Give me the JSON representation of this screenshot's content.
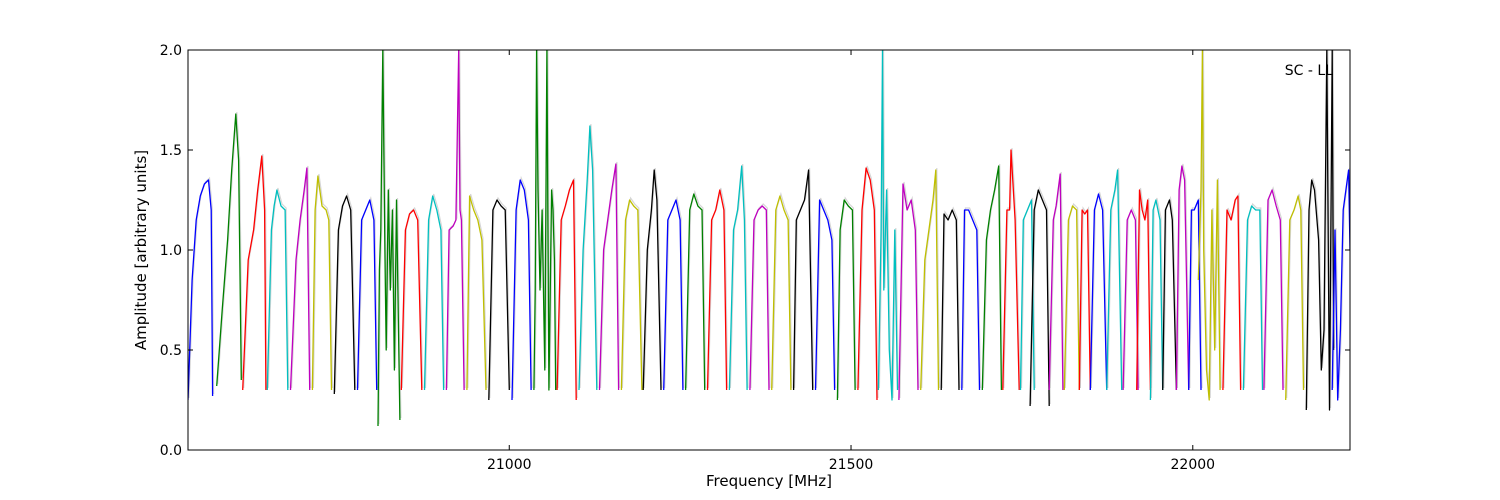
{
  "chart_data": {
    "type": "line",
    "title": "",
    "annotation": "SC - LL",
    "xlabel": "Frequency [MHz]",
    "ylabel": "Amplitude [arbitrary units]",
    "xlim": [
      20530,
      22230
    ],
    "ylim": [
      0.0,
      2.0
    ],
    "xticks": [
      21000,
      21500,
      22000
    ],
    "yticks": [
      0.0,
      0.5,
      1.0,
      1.5,
      2.0
    ],
    "xtick_labels": [
      "21000",
      "21500",
      "22000"
    ],
    "ytick_labels": [
      "0.0",
      "0.5",
      "1.0",
      "1.5",
      "2.0"
    ],
    "grid": false,
    "legend": "none",
    "color_cycle": [
      "#0000ff",
      "#008000",
      "#ff0000",
      "#00bfbf",
      "#bf00bf",
      "#bfbf00",
      "#000000"
    ],
    "background_trace_color": "#bbbbbb",
    "channel_width_mhz": 33.3,
    "series": [
      {
        "color": "#0000ff",
        "x": [
          20530,
          20536,
          20542,
          20548,
          20554,
          20560,
          20564,
          20566
        ],
        "y": [
          0.25,
          0.85,
          1.15,
          1.27,
          1.33,
          1.35,
          1.2,
          0.27
        ]
      },
      {
        "color": "#008000",
        "x": [
          20572,
          20580,
          20588,
          20594,
          20600,
          20604,
          20608
        ],
        "y": [
          0.32,
          0.7,
          1.05,
          1.4,
          1.68,
          1.45,
          0.35
        ]
      },
      {
        "color": "#ff0000",
        "x": [
          20610,
          20618,
          20626,
          20632,
          20638,
          20642,
          20644
        ],
        "y": [
          0.3,
          0.95,
          1.1,
          1.3,
          1.47,
          1.2,
          0.3
        ]
      },
      {
        "color": "#00bfbf",
        "x": [
          20646,
          20652,
          20656,
          20660,
          20666,
          20672,
          20676
        ],
        "y": [
          0.3,
          1.1,
          1.22,
          1.3,
          1.22,
          1.2,
          0.3
        ]
      },
      {
        "color": "#bf00bf",
        "x": [
          20680,
          20688,
          20694,
          20700,
          20704,
          20708
        ],
        "y": [
          0.3,
          0.95,
          1.15,
          1.3,
          1.41,
          0.3
        ]
      },
      {
        "color": "#bfbf00",
        "x": [
          20712,
          20716,
          20720,
          20726,
          20732,
          20736,
          20740
        ],
        "y": [
          0.3,
          1.2,
          1.37,
          1.22,
          1.2,
          1.15,
          0.3
        ]
      },
      {
        "color": "#000000",
        "x": [
          20744,
          20750,
          20756,
          20762,
          20768,
          20774
        ],
        "y": [
          0.28,
          1.1,
          1.22,
          1.27,
          1.2,
          0.3
        ]
      },
      {
        "color": "#0000ff",
        "x": [
          20778,
          20784,
          20790,
          20796,
          20802,
          20806
        ],
        "y": [
          0.3,
          1.15,
          1.2,
          1.25,
          1.15,
          0.3
        ]
      },
      {
        "color": "#008000",
        "x": [
          20808,
          20810,
          20812,
          20815,
          20818,
          20820,
          20823,
          20826,
          20829,
          20832,
          20835,
          20838,
          20840
        ],
        "y": [
          0.12,
          0.9,
          1.1,
          2.0,
          1.0,
          0.5,
          1.3,
          0.8,
          1.2,
          0.4,
          1.25,
          0.6,
          0.15
        ]
      },
      {
        "color": "#ff0000",
        "x": [
          20842,
          20848,
          20854,
          20860,
          20866,
          20872
        ],
        "y": [
          0.3,
          1.1,
          1.18,
          1.2,
          1.15,
          0.3
        ]
      },
      {
        "color": "#00bfbf",
        "x": [
          20876,
          20882,
          20888,
          20894,
          20900,
          20904
        ],
        "y": [
          0.3,
          1.15,
          1.27,
          1.2,
          1.1,
          0.3
        ]
      },
      {
        "color": "#bf00bf",
        "x": [
          20908,
          20912,
          20918,
          20922,
          20926,
          20928,
          20930,
          20934
        ],
        "y": [
          0.3,
          1.1,
          1.12,
          1.15,
          2.0,
          1.2,
          1.15,
          0.3
        ]
      },
      {
        "color": "#bfbf00",
        "x": [
          20938,
          20942,
          20948,
          20954,
          20960,
          20966
        ],
        "y": [
          0.3,
          1.27,
          1.2,
          1.15,
          1.05,
          0.3
        ]
      },
      {
        "color": "#000000",
        "x": [
          20970,
          20976,
          20982,
          20988,
          20994,
          21000
        ],
        "y": [
          0.25,
          1.2,
          1.25,
          1.22,
          1.2,
          0.3
        ]
      },
      {
        "color": "#0000ff",
        "x": [
          21004,
          21010,
          21016,
          21022,
          21028,
          21032
        ],
        "y": [
          0.25,
          1.2,
          1.35,
          1.3,
          1.15,
          0.3
        ]
      },
      {
        "color": "#008000",
        "x": [
          21036,
          21038,
          21040,
          21042,
          21045,
          21048,
          21052,
          21055,
          21058,
          21062,
          21064,
          21066,
          21068
        ],
        "y": [
          0.3,
          0.8,
          2.0,
          1.3,
          0.8,
          1.2,
          0.4,
          2.0,
          0.3,
          1.3,
          1.2,
          0.95,
          0.3
        ]
      },
      {
        "color": "#ff0000",
        "x": [
          21070,
          21076,
          21082,
          21088,
          21094,
          21098
        ],
        "y": [
          0.3,
          1.15,
          1.22,
          1.3,
          1.35,
          0.25
        ]
      },
      {
        "color": "#00bfbf",
        "x": [
          21102,
          21108,
          21114,
          21118,
          21122,
          21128
        ],
        "y": [
          0.3,
          1.0,
          1.35,
          1.62,
          1.4,
          0.3
        ]
      },
      {
        "color": "#bf00bf",
        "x": [
          21132,
          21138,
          21144,
          21150,
          21156,
          21160
        ],
        "y": [
          0.3,
          1.0,
          1.15,
          1.3,
          1.43,
          0.3
        ]
      },
      {
        "color": "#bfbf00",
        "x": [
          21164,
          21170,
          21176,
          21182,
          21188,
          21194
        ],
        "y": [
          0.3,
          1.15,
          1.25,
          1.22,
          1.2,
          0.3
        ]
      },
      {
        "color": "#000000",
        "x": [
          21196,
          21202,
          21208,
          21212,
          21216,
          21222
        ],
        "y": [
          0.3,
          1.0,
          1.2,
          1.4,
          1.25,
          0.3
        ]
      },
      {
        "color": "#0000ff",
        "x": [
          21226,
          21232,
          21238,
          21244,
          21250,
          21254
        ],
        "y": [
          0.3,
          1.15,
          1.2,
          1.25,
          1.15,
          0.3
        ]
      },
      {
        "color": "#008000",
        "x": [
          21258,
          21264,
          21270,
          21276,
          21282,
          21286
        ],
        "y": [
          0.3,
          1.2,
          1.28,
          1.22,
          1.2,
          0.3
        ]
      },
      {
        "color": "#ff0000",
        "x": [
          21290,
          21296,
          21302,
          21308,
          21314,
          21318
        ],
        "y": [
          0.3,
          1.15,
          1.2,
          1.3,
          1.2,
          0.3
        ]
      },
      {
        "color": "#00bfbf",
        "x": [
          21322,
          21328,
          21334,
          21340,
          21344,
          21348
        ],
        "y": [
          0.3,
          1.1,
          1.2,
          1.42,
          1.15,
          0.3
        ]
      },
      {
        "color": "#bf00bf",
        "x": [
          21352,
          21358,
          21364,
          21370,
          21376,
          21380
        ],
        "y": [
          0.3,
          1.15,
          1.2,
          1.22,
          1.2,
          0.3
        ]
      },
      {
        "color": "#bfbf00",
        "x": [
          21384,
          21390,
          21396,
          21402,
          21408,
          21412
        ],
        "y": [
          0.3,
          1.2,
          1.27,
          1.2,
          1.15,
          0.3
        ]
      },
      {
        "color": "#000000",
        "x": [
          21416,
          21420,
          21426,
          21432,
          21438,
          21444
        ],
        "y": [
          0.3,
          1.15,
          1.2,
          1.25,
          1.4,
          0.3
        ]
      },
      {
        "color": "#0000ff",
        "x": [
          21448,
          21454,
          21460,
          21466,
          21472,
          21476
        ],
        "y": [
          0.3,
          1.25,
          1.2,
          1.15,
          1.05,
          0.3
        ]
      },
      {
        "color": "#008000",
        "x": [
          21480,
          21484,
          21490,
          21496,
          21502,
          21506
        ],
        "y": [
          0.25,
          1.1,
          1.25,
          1.22,
          1.2,
          0.3
        ]
      },
      {
        "color": "#ff0000",
        "x": [
          21510,
          21516,
          21522,
          21528,
          21534,
          21538
        ],
        "y": [
          0.3,
          1.2,
          1.41,
          1.35,
          1.2,
          0.25
        ]
      },
      {
        "color": "#00bfbf",
        "x": [
          21540,
          21544,
          21546,
          21548,
          21552,
          21556,
          21560,
          21564,
          21568
        ],
        "y": [
          0.3,
          1.1,
          2.0,
          0.8,
          1.3,
          0.5,
          0.25,
          1.1,
          0.3
        ]
      },
      {
        "color": "#bf00bf",
        "x": [
          21570,
          21576,
          21582,
          21588,
          21594,
          21598
        ],
        "y": [
          0.25,
          1.33,
          1.2,
          1.25,
          1.1,
          0.3
        ]
      },
      {
        "color": "#bfbf00",
        "x": [
          21602,
          21608,
          21614,
          21620,
          21624,
          21628
        ],
        "y": [
          0.3,
          0.95,
          1.1,
          1.25,
          1.4,
          0.3
        ]
      },
      {
        "color": "#000000",
        "x": [
          21632,
          21636,
          21642,
          21648,
          21654,
          21658
        ],
        "y": [
          0.3,
          1.18,
          1.15,
          1.2,
          1.15,
          0.3
        ]
      },
      {
        "color": "#0000ff",
        "x": [
          21662,
          21666,
          21672,
          21678,
          21684,
          21688
        ],
        "y": [
          0.3,
          1.2,
          1.2,
          1.15,
          1.1,
          0.3
        ]
      },
      {
        "color": "#008000",
        "x": [
          21692,
          21698,
          21704,
          21710,
          21716,
          21720
        ],
        "y": [
          0.3,
          1.05,
          1.2,
          1.3,
          1.42,
          0.3
        ]
      },
      {
        "color": "#ff0000",
        "x": [
          21722,
          21728,
          21732,
          21734,
          21740,
          21746
        ],
        "y": [
          0.3,
          1.2,
          1.2,
          1.5,
          1.15,
          0.3
        ]
      },
      {
        "color": "#00bfbf",
        "x": [
          21748,
          21752,
          21758,
          21764,
          21768
        ],
        "y": [
          0.3,
          1.15,
          1.2,
          1.25,
          0.3
        ]
      },
      {
        "color": "#000000",
        "x": [
          21762,
          21768,
          21774,
          21780,
          21786,
          21790
        ],
        "y": [
          0.22,
          1.2,
          1.3,
          1.25,
          1.2,
          0.22
        ]
      },
      {
        "color": "#bf00bf",
        "x": [
          21790,
          21796,
          21800,
          21806,
          21810
        ],
        "y": [
          0.3,
          1.15,
          1.22,
          1.38,
          0.3
        ]
      },
      {
        "color": "#bfbf00",
        "x": [
          21812,
          21818,
          21824,
          21830,
          21834
        ],
        "y": [
          0.3,
          1.15,
          1.22,
          1.2,
          0.3
        ]
      },
      {
        "color": "#ff0000",
        "x": [
          21834,
          21838,
          21842,
          21846,
          21850
        ],
        "y": [
          0.3,
          1.2,
          1.18,
          1.2,
          0.3
        ]
      },
      {
        "color": "#0000ff",
        "x": [
          21850,
          21856,
          21862,
          21868,
          21874
        ],
        "y": [
          0.3,
          1.2,
          1.28,
          1.2,
          0.3
        ]
      },
      {
        "color": "#00bfbf",
        "x": [
          21874,
          21880,
          21886,
          21890,
          21896
        ],
        "y": [
          0.3,
          1.2,
          1.3,
          1.4,
          0.3
        ]
      },
      {
        "color": "#bf00bf",
        "x": [
          21898,
          21904,
          21910,
          21916,
          21920
        ],
        "y": [
          0.3,
          1.15,
          1.2,
          1.15,
          0.3
        ]
      },
      {
        "color": "#ff0000",
        "x": [
          21918,
          21922,
          21926,
          21930,
          21934,
          21938
        ],
        "y": [
          0.3,
          1.3,
          1.2,
          1.15,
          1.25,
          0.3
        ]
      },
      {
        "color": "#00bfbf",
        "x": [
          21938,
          21942,
          21946,
          21952,
          21956
        ],
        "y": [
          0.25,
          1.2,
          1.25,
          1.15,
          0.3
        ]
      },
      {
        "color": "#000000",
        "x": [
          21956,
          21960,
          21966,
          21970,
          21976
        ],
        "y": [
          0.3,
          1.2,
          1.25,
          1.15,
          0.3
        ]
      },
      {
        "color": "#bf00bf",
        "x": [
          21976,
          21980,
          21984,
          21988,
          21994
        ],
        "y": [
          0.3,
          1.3,
          1.42,
          1.35,
          0.3
        ]
      },
      {
        "color": "#0000ff",
        "x": [
          21994,
          21998,
          22002,
          22008,
          22012
        ],
        "y": [
          0.3,
          1.2,
          1.2,
          1.25,
          0.3
        ]
      },
      {
        "color": "#bfbf00",
        "x": [
          22008,
          22012,
          22014,
          22016,
          22020,
          22024,
          22028,
          22032,
          22036,
          22040
        ],
        "y": [
          0.85,
          1.3,
          2.0,
          1.0,
          0.4,
          0.25,
          1.2,
          0.5,
          1.35,
          0.3
        ]
      },
      {
        "color": "#ff0000",
        "x": [
          22044,
          22050,
          22056,
          22062,
          22066,
          22070
        ],
        "y": [
          0.3,
          1.2,
          1.15,
          1.25,
          1.27,
          0.3
        ]
      },
      {
        "color": "#00bfbf",
        "x": [
          22074,
          22080,
          22086,
          22092,
          22098,
          22102
        ],
        "y": [
          0.3,
          1.15,
          1.22,
          1.2,
          1.2,
          0.3
        ]
      },
      {
        "color": "#bf00bf",
        "x": [
          22104,
          22110,
          22116,
          22122,
          22128,
          22132
        ],
        "y": [
          0.3,
          1.25,
          1.3,
          1.22,
          1.15,
          0.3
        ]
      },
      {
        "color": "#bfbf00",
        "x": [
          22136,
          22142,
          22148,
          22154,
          22158,
          22162
        ],
        "y": [
          0.25,
          1.15,
          1.2,
          1.27,
          1.2,
          0.3
        ]
      },
      {
        "color": "#000000",
        "x": [
          22166,
          22170,
          22174,
          22178,
          22184,
          22188,
          22192,
          22196,
          22200,
          22204,
          22206
        ],
        "y": [
          0.2,
          1.2,
          1.35,
          1.3,
          1.05,
          0.4,
          0.6,
          2.0,
          0.2,
          2.0,
          0.5
        ]
      },
      {
        "color": "#0000ff",
        "x": [
          22204,
          22208,
          22212,
          22216,
          22220,
          22224,
          22228,
          22230
        ],
        "y": [
          0.3,
          1.1,
          0.25,
          0.6,
          1.2,
          1.3,
          1.4,
          1.0
        ]
      }
    ]
  }
}
